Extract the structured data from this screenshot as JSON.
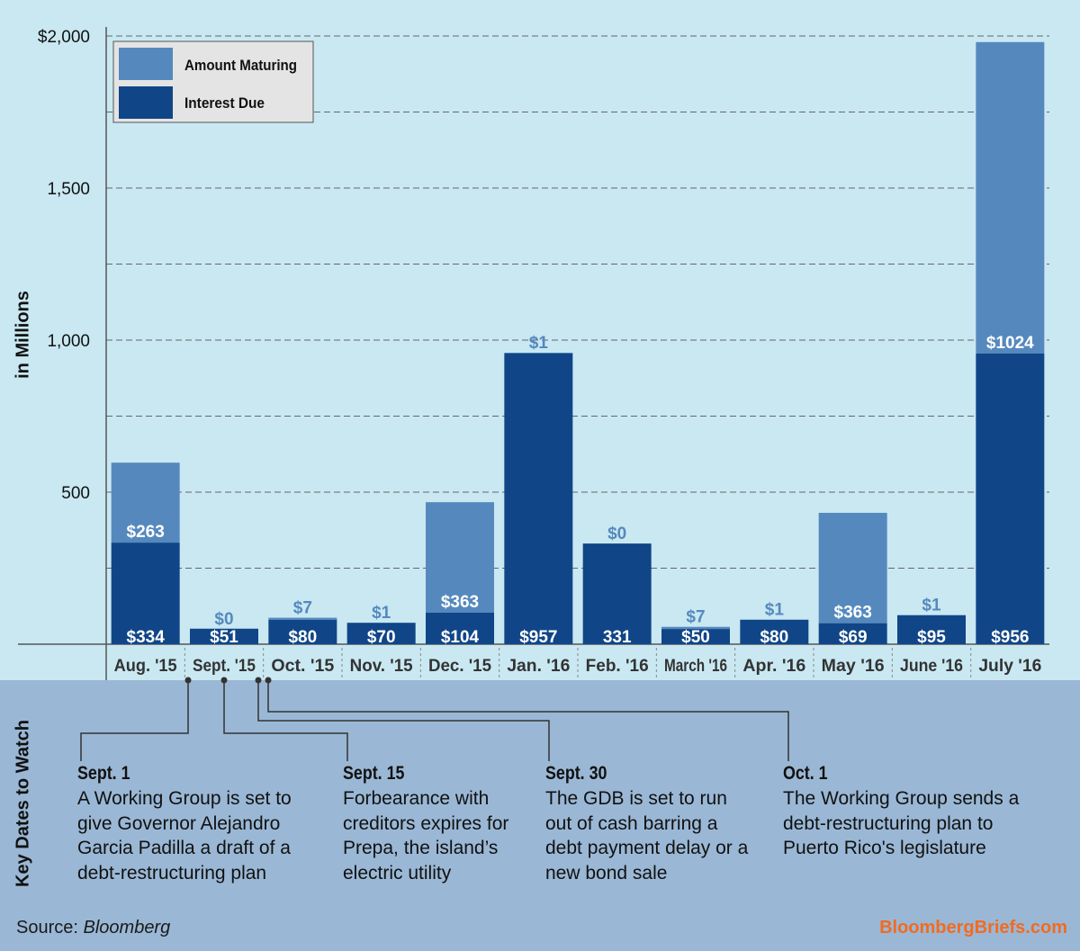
{
  "colors": {
    "background": "#c9e8f2",
    "panel": "#9ab8d5",
    "maturing": "#5589be",
    "interest": "#104687",
    "grid": "#666666",
    "brand": "#f26b21"
  },
  "chart_data": {
    "type": "bar",
    "stacked": true,
    "title": "",
    "xlabel": "",
    "ylabel": "in Millions",
    "ylim": [
      0,
      2000
    ],
    "y_ticks": [
      "500",
      "1,000",
      "1,500",
      "$2,000"
    ],
    "y_tick_values": [
      500,
      1000,
      1500,
      2000
    ],
    "gridlines_every": 250,
    "legend_position": "top-left",
    "categories": [
      "Aug. '15",
      "Sept. '15",
      "Oct. '15",
      "Nov. '15",
      "Dec. '15",
      "Jan. '16",
      "Feb. '16",
      "March '16",
      "Apr. '16",
      "May '16",
      "June '16",
      "July '16"
    ],
    "series": [
      {
        "name": "Interest Due",
        "color": "#104687",
        "values": [
          334,
          51,
          80,
          70,
          104,
          957,
          331,
          50,
          80,
          69,
          95,
          956
        ],
        "labels": [
          "$334",
          "$51",
          "$80",
          "$70",
          "$104",
          "$957",
          "331",
          "$50",
          "$80",
          "$69",
          "$95",
          "$956"
        ]
      },
      {
        "name": "Amount Maturing",
        "color": "#5589be",
        "values": [
          263,
          0,
          7,
          1,
          363,
          1,
          0,
          7,
          1,
          363,
          1,
          1024
        ],
        "labels": [
          "$263",
          "$0",
          "$7",
          "$1",
          "$363",
          "$1",
          "$0",
          "$7",
          "$1",
          "$363",
          "$1",
          "$1024"
        ]
      }
    ]
  },
  "key_dates": {
    "title": "Key Dates to Watch",
    "events": [
      {
        "date": "Sept. 1",
        "text": "A Working Group is set to give Governor Alejandro Garcia Padilla a draft of a debt-restructuring plan"
      },
      {
        "date": "Sept. 15",
        "text": "Forbearance with creditors expires for Prepa, the island’s electric utility"
      },
      {
        "date": "Sept. 30",
        "text": "The GDB is set to run out of cash barring a debt payment delay or a new bond sale"
      },
      {
        "date": "Oct. 1",
        "text": "The Working Group sends a debt-restructuring plan to Puerto Rico's legislature"
      }
    ]
  },
  "footer": {
    "source_label": "Source:",
    "source_name": "Bloomberg",
    "brand": "BloombergBriefs.com"
  }
}
